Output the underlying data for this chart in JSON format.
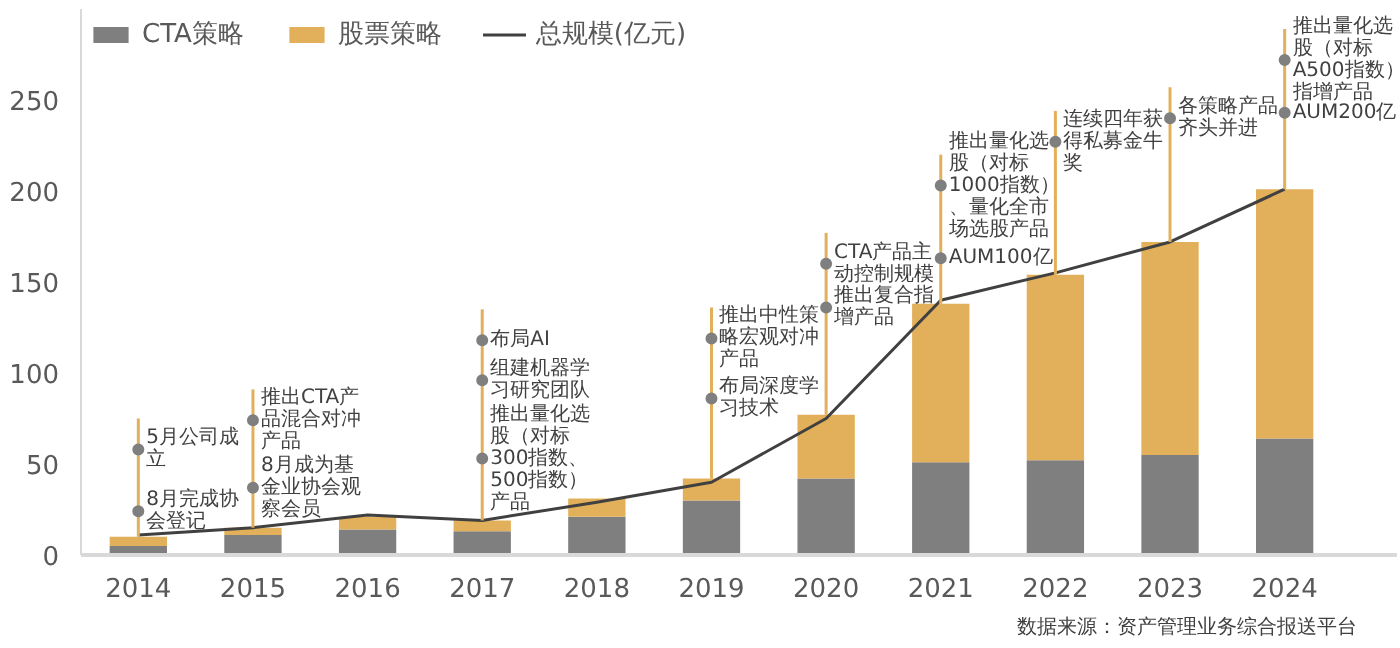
{
  "chart_data": {
    "type": "bar",
    "stacked": true,
    "categories": [
      "2014",
      "2015",
      "2016",
      "2017",
      "2018",
      "2019",
      "2020",
      "2021",
      "2022",
      "2023",
      "2024"
    ],
    "series": [
      {
        "name": "CTA策略",
        "color": "#7f7f7f",
        "values": [
          5,
          11,
          14,
          13,
          21,
          30,
          42,
          51,
          52,
          55,
          64
        ]
      },
      {
        "name": "股票策略",
        "color": "#e2b05a",
        "values": [
          5,
          4,
          7,
          6,
          10,
          12,
          35,
          87,
          102,
          117,
          137
        ]
      },
      {
        "name": "总规模(亿元)",
        "type": "line",
        "color": "#404040",
        "values": [
          11,
          15,
          22,
          19,
          29,
          40,
          75,
          140,
          155,
          172,
          201
        ]
      }
    ],
    "ylim": [
      0,
      300
    ],
    "yticks": [
      0,
      50,
      100,
      150,
      200,
      250
    ],
    "grid": false,
    "legend": "top left",
    "annotations": [
      {
        "text": "5月公司成立",
        "x": "2014",
        "y": 58
      },
      {
        "text": "8月完成协会登记",
        "x": "2014",
        "y": 24
      },
      {
        "text": "推出CTA产品混合对冲产品",
        "x": "2015",
        "y": 74
      },
      {
        "text": "8月成为基金业协会观察会员",
        "x": "2015",
        "y": 37
      },
      {
        "text": "布局AI",
        "x": "2017",
        "y": 118
      },
      {
        "text": "组建机器学习研究团队",
        "x": "2017",
        "y": 96
      },
      {
        "text": "推出量化选股（对标300指数、500指数）产品",
        "x": "2017",
        "y": 53
      },
      {
        "text": "推出中性策略宏观对冲产品",
        "x": "2019",
        "y": 119
      },
      {
        "text": "布局深度学习技术",
        "x": "2019",
        "y": 86
      },
      {
        "text": "CTA产品主动控制规模",
        "x": "2020",
        "y": 160
      },
      {
        "text": "推出复合指增产品",
        "x": "2020",
        "y": 136
      },
      {
        "text": "推出量化选股（对标1000指数）、量化全市场选股产品",
        "x": "2021",
        "y": 203
      },
      {
        "text": "AUM100亿",
        "x": "2021",
        "y": 163
      },
      {
        "text": "连续四年获得私募金牛奖",
        "x": "2022",
        "y": 227
      },
      {
        "text": "各策略产品齐头并进",
        "x": "2023",
        "y": 240
      },
      {
        "text": "推出量化选股（对标A500指数）指增产品",
        "x": "2024",
        "y": 272
      },
      {
        "text": "AUM200亿",
        "x": "2024",
        "y": 243
      },
      "数据来源：资产管理业务综合报送平台"
    ]
  }
}
